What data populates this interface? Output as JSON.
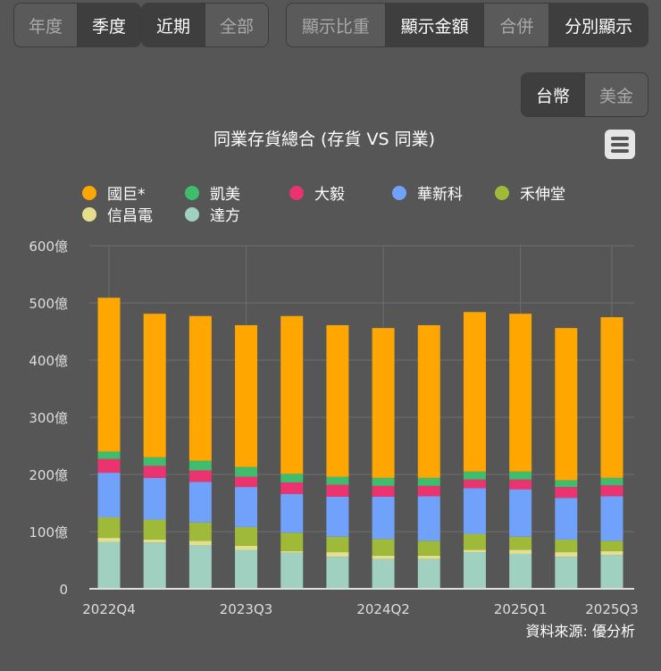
{
  "controls": {
    "period": [
      "年度",
      "季度"
    ],
    "period_selected": 1,
    "range": [
      "近期",
      "全部"
    ],
    "range_selected": 0,
    "display": [
      "顯示比重",
      "顯示金額",
      "合併",
      "分別顯示"
    ],
    "currency": [
      "台幣",
      "美金"
    ],
    "currency_selected": 0
  },
  "menu_icon": "hamburger-menu-icon",
  "source": "資料來源: 優分析",
  "chart_data": {
    "type": "bar",
    "stacked": true,
    "title": "同業存貨總合 (存貨 VS 同業)",
    "categories": [
      "2022Q4",
      "2023Q1",
      "2023Q2",
      "2023Q3",
      "2023Q4",
      "2024Q1",
      "2024Q2",
      "2024Q3",
      "2024Q4",
      "2025Q1",
      "2025Q2",
      "2025Q3"
    ],
    "x_tick_labels": [
      "2022Q4",
      "2023Q3",
      "2024Q2",
      "2025Q1",
      "2025Q3"
    ],
    "y_tick_labels": [
      "0",
      "100億",
      "200億",
      "300億",
      "400億",
      "500億",
      "600億"
    ],
    "ylim": [
      0,
      600
    ],
    "unit": "億",
    "grid": true,
    "legend_position": "top-left",
    "series": [
      {
        "name": "達方",
        "color": "#9fd0c0",
        "values": [
          82,
          81,
          76,
          68,
          63,
          56,
          52,
          52,
          64,
          61,
          56,
          59
        ]
      },
      {
        "name": "信昌電",
        "color": "#e3df8e",
        "values": [
          7,
          5,
          8,
          7,
          3,
          8,
          6,
          6,
          4,
          7,
          8,
          7
        ]
      },
      {
        "name": "禾伸堂",
        "color": "#9fba38",
        "values": [
          36,
          35,
          32,
          33,
          32,
          27,
          29,
          26,
          28,
          23,
          22,
          18
        ]
      },
      {
        "name": "華新科",
        "color": "#70a1fb",
        "values": [
          78,
          73,
          71,
          70,
          68,
          70,
          74,
          78,
          80,
          83,
          73,
          78
        ]
      },
      {
        "name": "大毅",
        "color": "#ea336f",
        "values": [
          24,
          21,
          20,
          18,
          20,
          21,
          19,
          18,
          15,
          17,
          19,
          19
        ]
      },
      {
        "name": "凱美",
        "color": "#3fbd6d",
        "values": [
          13,
          15,
          17,
          17,
          15,
          14,
          14,
          14,
          14,
          14,
          12,
          13
        ]
      },
      {
        "name": "國巨*",
        "color": "#ffa600",
        "values": [
          269,
          251,
          253,
          248,
          276,
          265,
          262,
          267,
          279,
          276,
          266,
          281
        ]
      }
    ],
    "legend_order": [
      "國巨*",
      "凱美",
      "大毅",
      "華新科",
      "禾伸堂",
      "信昌電",
      "達方"
    ]
  }
}
